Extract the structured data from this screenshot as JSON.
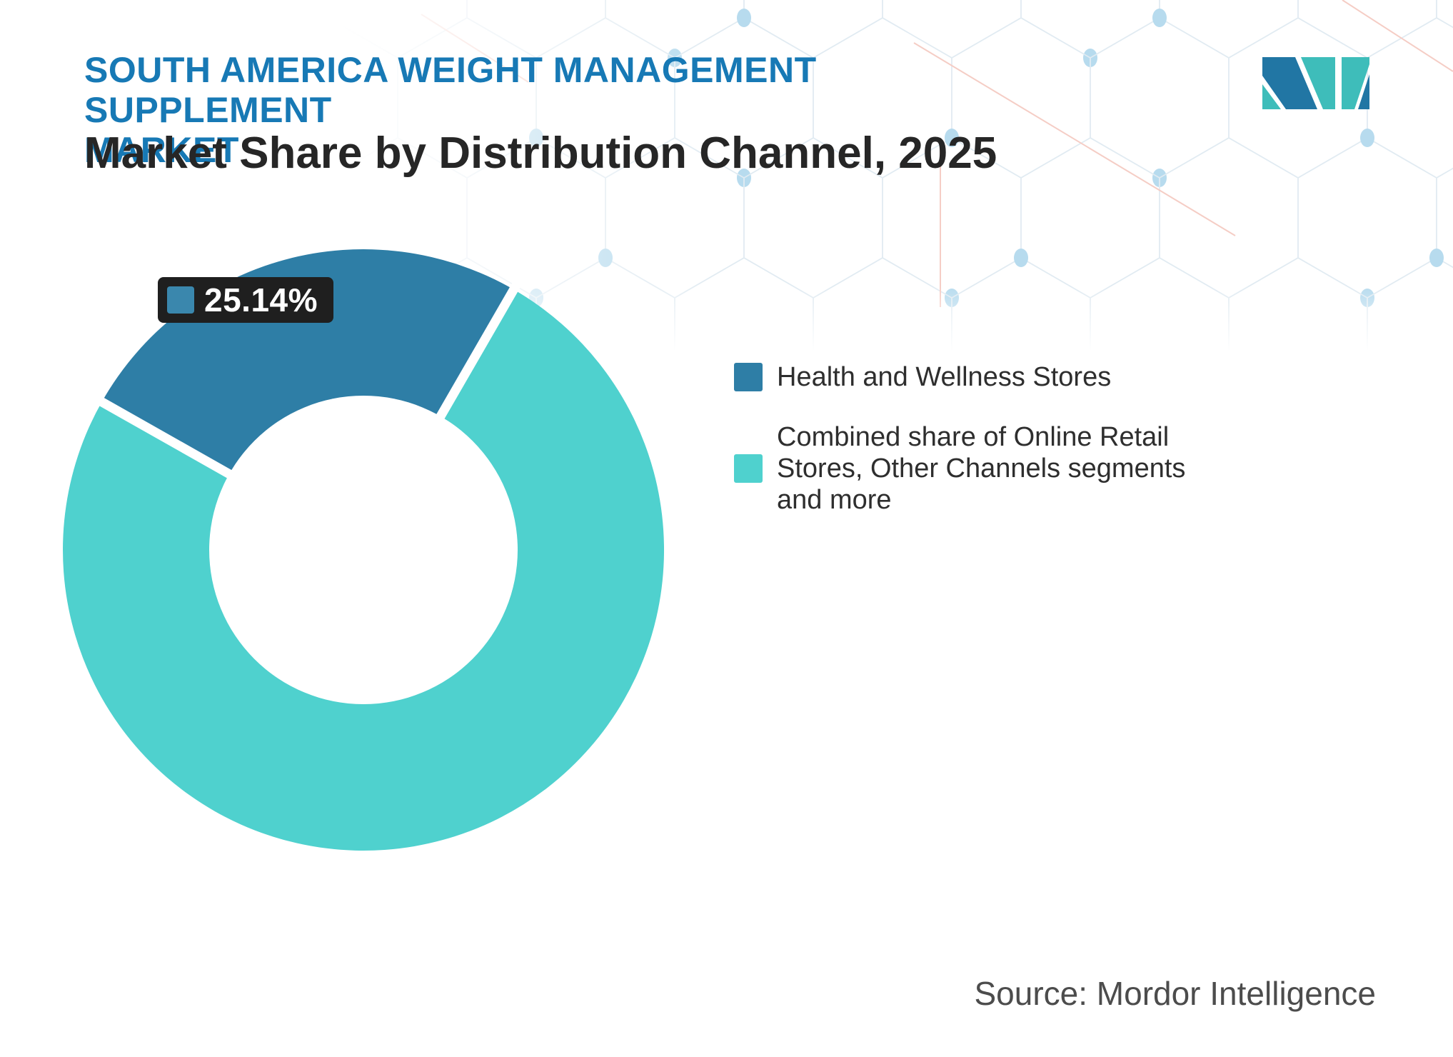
{
  "header": {
    "title_line1": "SOUTH AMERICA WEIGHT MANAGEMENT SUPPLEMENT",
    "title_line2": "MARKET",
    "subtitle": "Market Share by Distribution Channel, 2025",
    "title_color": "#1779B5",
    "subtitle_color": "#262626"
  },
  "logo": {
    "name": "Mordor Intelligence",
    "blue": "#2176A4",
    "teal": "#3EBDBA"
  },
  "chart_data": {
    "type": "pie",
    "subtype": "donut",
    "title": "Market Share by Distribution Channel, 2025",
    "categories": [
      "Health and Wellness Stores",
      "Combined share of Online Retail Stores, Other Channels segments and more"
    ],
    "values": [
      25.14,
      74.86
    ],
    "colors": [
      "#2E7EA6",
      "#4FD1CE"
    ],
    "data_labels": [
      {
        "series": "Health and Wellness Stores",
        "text": "25.14%"
      }
    ],
    "start_angle_deg": -60.5,
    "inner_radius_ratio": 0.51,
    "legend_position": "right",
    "grid": false
  },
  "datalabel": {
    "value": "25.14%",
    "bg": "#1F1F1F",
    "swatch_color": "#3A87AD"
  },
  "legend": {
    "items": [
      {
        "label": "Health and Wellness Stores",
        "color": "#2E7EA6"
      },
      {
        "label": "Combined share of Online Retail Stores, Other Channels segments and more",
        "color": "#4FD1CE"
      }
    ]
  },
  "footer": {
    "source": "Source: Mordor Intelligence"
  }
}
